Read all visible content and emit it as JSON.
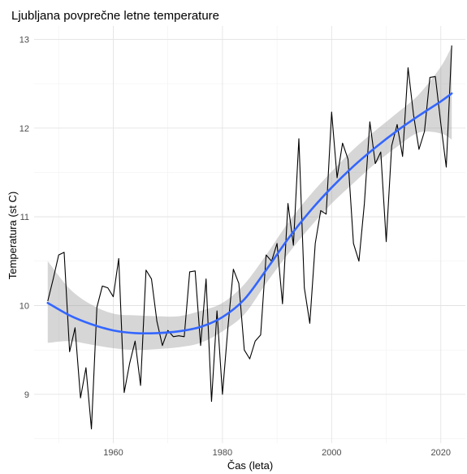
{
  "chart_data": {
    "type": "line",
    "title": "Ljubljana povprečne letne temperature",
    "xlabel": "Čas (leta)",
    "ylabel": "Temperatura (st C)",
    "xlim": [
      1945.5,
      2024.5
    ],
    "ylim": [
      8.45,
      13.15
    ],
    "x_ticks": [
      1960,
      1980,
      2000,
      2020
    ],
    "y_ticks": [
      9,
      10,
      11,
      12,
      13
    ],
    "grid": true,
    "colors": {
      "observed": "#000000",
      "trend": "#3366ff",
      "band": "#999999"
    },
    "series": [
      {
        "x": [
          1948,
          1949,
          1950,
          1951,
          1952,
          1953,
          1954,
          1955,
          1956,
          1957,
          1958,
          1959,
          1960,
          1961,
          1962,
          1963,
          1964,
          1965,
          1966,
          1967,
          1968,
          1969,
          1970,
          1971,
          1972,
          1973,
          1974,
          1975,
          1976,
          1977,
          1978,
          1979,
          1980,
          1981,
          1982,
          1983,
          1984,
          1985,
          1986,
          1987,
          1988,
          1989,
          1990,
          1991,
          1992,
          1993,
          1994,
          1995,
          1996,
          1997,
          1998,
          1999,
          2000,
          2001,
          2002,
          2003,
          2004,
          2005,
          2006,
          2007,
          2008,
          2009,
          2010,
          2011,
          2012,
          2013,
          2014,
          2015,
          2016,
          2017,
          2018,
          2019,
          2020,
          2021,
          2022
        ],
        "values": [
          10.05,
          10.3,
          10.57,
          10.6,
          9.48,
          9.75,
          8.96,
          9.3,
          8.61,
          9.98,
          10.22,
          10.2,
          10.1,
          10.53,
          9.02,
          9.35,
          9.6,
          9.1,
          10.4,
          10.3,
          9.82,
          9.55,
          9.72,
          9.65,
          9.66,
          9.65,
          10.38,
          10.39,
          9.55,
          10.3,
          8.92,
          9.94,
          9.0,
          9.75,
          10.41,
          10.25,
          9.5,
          9.4,
          9.6,
          9.67,
          10.57,
          10.5,
          10.7,
          10.02,
          11.15,
          10.68,
          11.88,
          10.2,
          9.8,
          10.7,
          11.07,
          11.03,
          12.18,
          11.44,
          11.83,
          11.65,
          10.7,
          10.5,
          11.15,
          12.07,
          11.6,
          11.73,
          10.72,
          11.8,
          12.04,
          11.68,
          12.68,
          12.15,
          11.76,
          11.96,
          12.57,
          12.58,
          12.05,
          11.56,
          12.93
        ]
      },
      {
        "x": [
          1948,
          1952,
          1956,
          1960,
          1964,
          1968,
          1972,
          1976,
          1980,
          1984,
          1988,
          1992,
          1996,
          2000,
          2004,
          2008,
          2012,
          2016,
          2020,
          2022
        ],
        "values": [
          10.03,
          9.89,
          9.79,
          9.72,
          9.69,
          9.69,
          9.71,
          9.76,
          9.87,
          10.07,
          10.4,
          10.75,
          11.06,
          11.33,
          11.57,
          11.78,
          11.97,
          12.14,
          12.3,
          12.39
        ],
        "lower": [
          9.58,
          9.6,
          9.56,
          9.52,
          9.5,
          9.51,
          9.53,
          9.58,
          9.71,
          9.9,
          10.25,
          10.58,
          10.88,
          11.15,
          11.38,
          11.6,
          11.79,
          11.95,
          11.94,
          11.87
        ],
        "upper": [
          10.5,
          10.19,
          10.01,
          9.91,
          9.89,
          9.88,
          9.88,
          9.94,
          10.03,
          10.24,
          10.57,
          10.93,
          11.24,
          11.51,
          11.76,
          11.97,
          12.17,
          12.38,
          12.69,
          12.92
        ]
      }
    ]
  }
}
